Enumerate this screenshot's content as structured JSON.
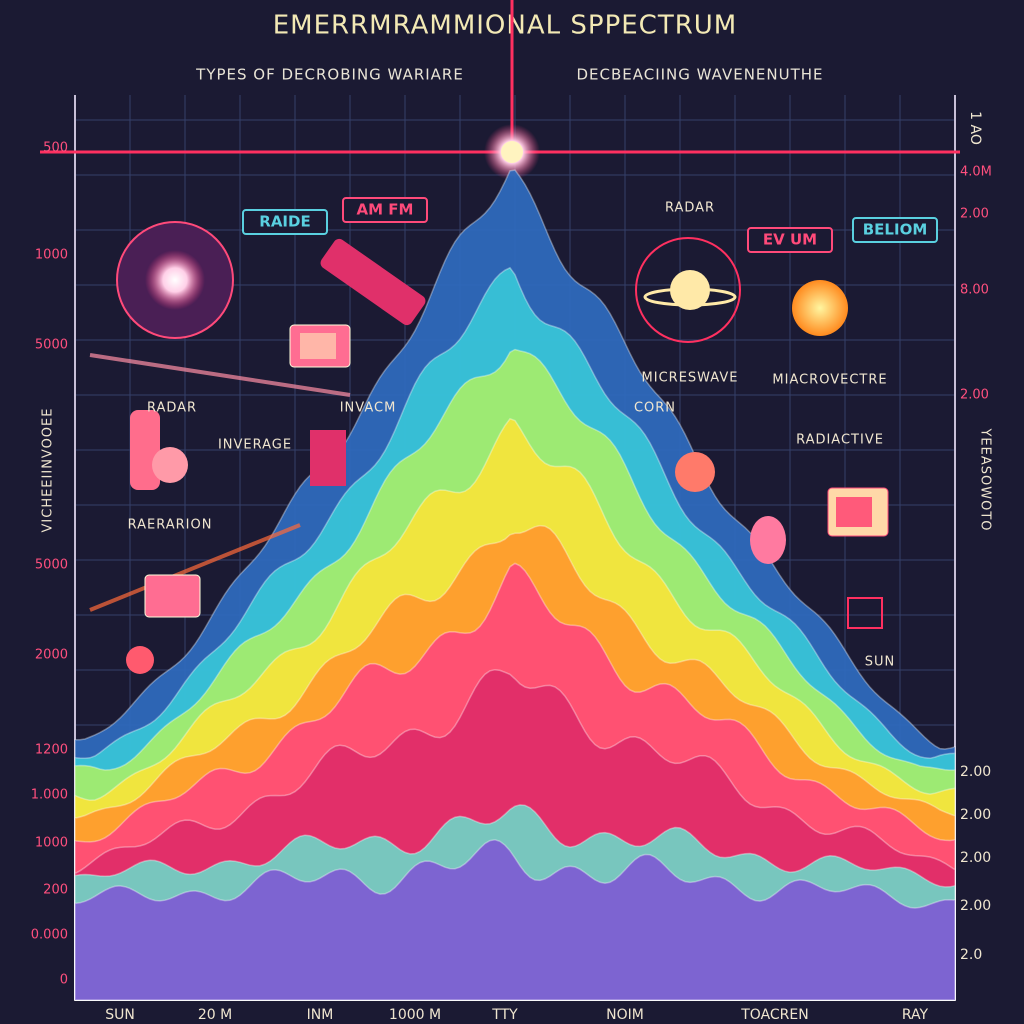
{
  "header": {
    "title": "EMERRMRAMMIONAL SPPECTRUM",
    "subtitles": [
      "TYPES OF DECROBING WARIARE",
      "DECBEACIING WAVENENUTHE"
    ]
  },
  "axes": {
    "left": [
      "500",
      "1000",
      "5000",
      "5000",
      "2000",
      "1200",
      "1.000",
      "1000",
      "200",
      "0.000",
      "0"
    ],
    "left_title": "VICHEEIINVOOEE",
    "right": [
      "1 AO",
      "4.0M",
      "2.00",
      "8.00",
      "2.00",
      "2.00",
      "2.00",
      "2.00",
      "2.00",
      "2.0"
    ],
    "right_title": "YEEASOWOTO",
    "bottom": [
      "SUN",
      "20 M",
      "INM",
      "1000 M",
      "TTY",
      "NOIM",
      "TOACREN",
      "RAY"
    ]
  },
  "labels": [
    "RAIDE",
    "AM FM",
    "RADAR",
    "EV UM",
    "BELIOM",
    "RADAR",
    "INVACM",
    "INVERAGE",
    "MICRESWAVE",
    "MIACROVECTRE",
    "CORN",
    "RADIACTIVE",
    "RAERARION",
    "SUN"
  ]
}
